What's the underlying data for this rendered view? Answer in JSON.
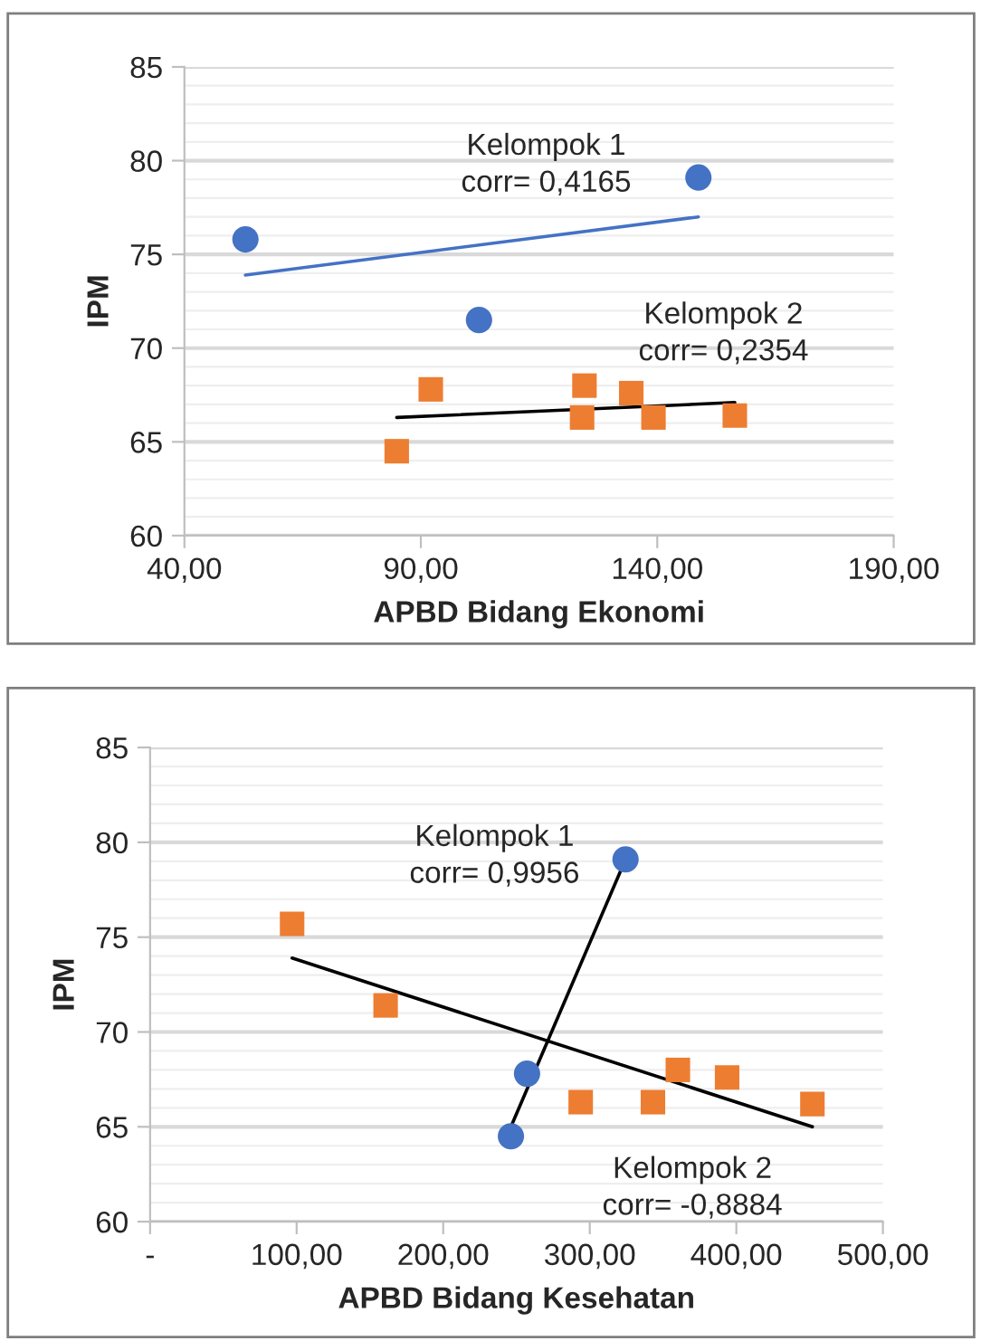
{
  "chart_data": [
    {
      "type": "scatter",
      "xlabel": "APBD Bidang Ekonomi",
      "ylabel": "IPM",
      "xlim": [
        40,
        190
      ],
      "xticks": [
        {
          "value": 40,
          "label": "40,00"
        },
        {
          "value": 90,
          "label": "90,00"
        },
        {
          "value": 140,
          "label": "140,00"
        },
        {
          "value": 190,
          "label": "190,00"
        }
      ],
      "ylim": [
        60,
        85
      ],
      "yticks": [
        60,
        65,
        70,
        75,
        80,
        85
      ],
      "grid": "y",
      "series": [
        {
          "type": "scatter",
          "marker": "circle",
          "color": "#4472c4",
          "x": [
            52.9,
            148.7,
            102.3
          ],
          "values": [
            75.8,
            79.1,
            71.5
          ]
        },
        {
          "type": "scatter",
          "marker": "square",
          "color": "#ed7d31",
          "x": [
            84.9,
            92.1,
            124.6,
            124.1,
            134.5,
            139.2,
            156.4
          ],
          "values": [
            64.5,
            67.8,
            68.0,
            66.3,
            67.6,
            66.3,
            66.4
          ]
        },
        {
          "type": "line",
          "marker": "none",
          "color": "#4472c4",
          "x": [
            52.9,
            148.7
          ],
          "values": [
            73.9,
            77.0
          ]
        },
        {
          "type": "line",
          "marker": "none",
          "color": "#000000",
          "x": [
            84.9,
            156.4
          ],
          "values": [
            66.3,
            67.1
          ]
        }
      ],
      "annotations": [
        "Kelompok 1\ncorr= 0,4165",
        "Kelompok 2\ncorr= 0,2354"
      ]
    },
    {
      "type": "scatter",
      "xlabel": "APBD Bidang Kesehatan",
      "ylabel": "IPM",
      "xlim": [
        0,
        500
      ],
      "xticks": [
        {
          "value": 0,
          "label": "-"
        },
        {
          "value": 100,
          "label": "100,00"
        },
        {
          "value": 200,
          "label": "200,00"
        },
        {
          "value": 300,
          "label": "300,00"
        },
        {
          "value": 400,
          "label": "400,00"
        },
        {
          "value": 500,
          "label": "500,00"
        }
      ],
      "ylim": [
        60,
        85
      ],
      "yticks": [
        60,
        65,
        70,
        75,
        80,
        85
      ],
      "grid": "y",
      "series": [
        {
          "type": "scatter",
          "marker": "circle",
          "color": "#4472c4",
          "x": [
            324.4,
            257.2,
            246.2
          ],
          "values": [
            79.1,
            67.8,
            64.5
          ]
        },
        {
          "type": "scatter",
          "marker": "square",
          "color": "#ed7d31",
          "x": [
            96.9,
            160.7,
            293.8,
            343.1,
            360.1,
            393.7,
            451.9
          ],
          "values": [
            75.7,
            71.4,
            66.3,
            66.3,
            68.0,
            67.6,
            66.2
          ]
        },
        {
          "type": "line",
          "marker": "none",
          "color": "#000000",
          "x": [
            246.2,
            324.4
          ],
          "values": [
            65.0,
            79.1
          ]
        },
        {
          "type": "line",
          "marker": "none",
          "color": "#000000",
          "x": [
            96.9,
            451.9
          ],
          "values": [
            73.9,
            65.0
          ]
        }
      ],
      "annotations": [
        "Kelompok 1\ncorr= 0,9956",
        "Kelompok 2\ncorr= -0,8884"
      ]
    }
  ]
}
